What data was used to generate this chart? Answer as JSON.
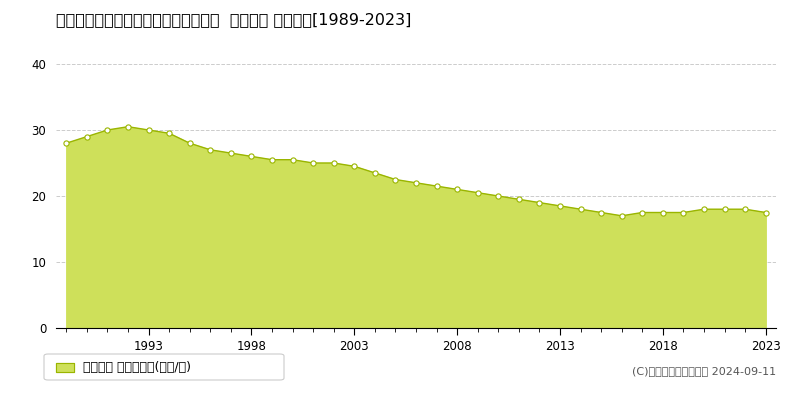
{
  "title": "広峳県呉市幅多賀谷１丁目１番１４外  地価公示 地価推移[1989-2023]",
  "years": [
    1989,
    1990,
    1991,
    1992,
    1993,
    1994,
    1995,
    1996,
    1997,
    1998,
    1999,
    2000,
    2001,
    2002,
    2003,
    2004,
    2005,
    2006,
    2007,
    2008,
    2009,
    2010,
    2011,
    2012,
    2013,
    2014,
    2015,
    2016,
    2017,
    2018,
    2019,
    2020,
    2021,
    2022,
    2023
  ],
  "values": [
    28.0,
    29.0,
    30.0,
    30.5,
    30.0,
    29.5,
    28.0,
    27.0,
    26.5,
    26.0,
    25.5,
    25.5,
    25.0,
    25.0,
    24.5,
    23.5,
    22.5,
    22.0,
    21.5,
    21.0,
    20.5,
    20.0,
    19.5,
    19.0,
    18.5,
    18.0,
    17.5,
    17.0,
    17.5,
    17.5,
    17.5,
    18.0,
    18.0,
    18.0,
    17.5
  ],
  "line_color": "#9ab500",
  "fill_color": "#cee05a",
  "fill_alpha": 1.0,
  "marker_facecolor": "#ffffff",
  "marker_edgecolor": "#9ab500",
  "background_color": "#ffffff",
  "grid_color": "#cccccc",
  "ylim": [
    0,
    40
  ],
  "yticks": [
    0,
    10,
    20,
    30,
    40
  ],
  "xtick_years": [
    1993,
    1998,
    2003,
    2008,
    2013,
    2018,
    2023
  ],
  "legend_label": "地価公示 平均嵪単価(万円/嵪)",
  "copyright_text": "(C)土地価格ドットコム 2024-09-11",
  "title_fontsize": 11.5,
  "tick_fontsize": 8.5,
  "legend_fontsize": 9,
  "copyright_fontsize": 8
}
